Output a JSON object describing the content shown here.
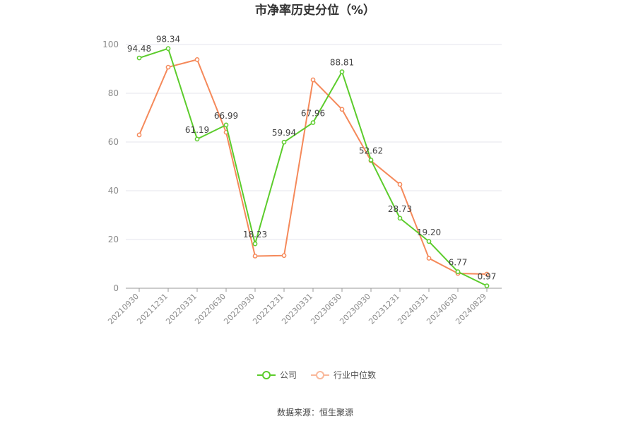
{
  "chart_data": {
    "type": "line",
    "title": "市净率历史分位（%）",
    "categories": [
      "20210930",
      "20211231",
      "20220331",
      "20220630",
      "20220930",
      "20221231",
      "20230331",
      "20230630",
      "20230930",
      "20231231",
      "20240331",
      "20240630",
      "20240829"
    ],
    "ylim": [
      0,
      100
    ],
    "yticks": [
      0,
      20,
      40,
      60,
      80,
      100
    ],
    "grid": true,
    "legend_position": "bottom",
    "series": [
      {
        "name": "公司",
        "color": "#5ccc2c",
        "values": [
          94.48,
          98.34,
          61.19,
          66.99,
          18.23,
          59.94,
          67.96,
          88.81,
          52.62,
          28.73,
          19.2,
          6.77,
          0.97
        ],
        "labels": [
          "94.48",
          "98.34",
          "61.19",
          "66.99",
          "18.23",
          "59.94",
          "67.96",
          "88.81",
          "52.62",
          "28.73",
          "19.20",
          "6.77",
          "0.97"
        ]
      },
      {
        "name": "行业中位数",
        "color": "#f5895a",
        "values": [
          62.9,
          90.7,
          93.8,
          64.0,
          13.2,
          13.4,
          85.5,
          73.4,
          52.3,
          42.6,
          12.3,
          6.1,
          5.8
        ]
      }
    ]
  },
  "source_text": "数据来源：恒生聚源"
}
